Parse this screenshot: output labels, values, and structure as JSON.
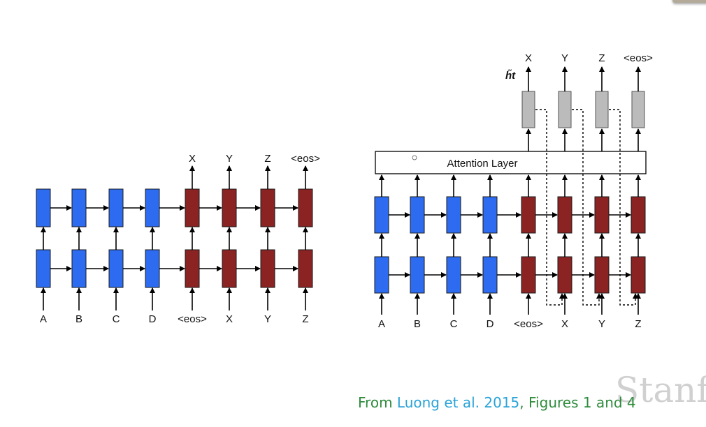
{
  "left_diagram": {
    "inputs": [
      "A",
      "B",
      "C",
      "D",
      "<eos>",
      "X",
      "Y",
      "Z"
    ],
    "outputs": [
      "X",
      "Y",
      "Z",
      "<eos>"
    ]
  },
  "right_diagram": {
    "inputs": [
      "A",
      "B",
      "C",
      "D",
      "<eos>",
      "X",
      "Y",
      "Z"
    ],
    "outputs": [
      "X",
      "Y",
      "Z",
      "<eos>"
    ],
    "attention_label": "Attention Layer",
    "ht_label": "h̃t"
  },
  "caption": {
    "prefix": "From ",
    "link": "Luong et al. 2015",
    "suffix": ", Figures 1 and 4"
  },
  "watermark": "Stanfo",
  "colors": {
    "encoder": "#2d6cf0",
    "decoder": "#8b2323",
    "attention_output": "#bbbbbb",
    "caption_text": "#2e8b3c",
    "caption_link": "#2aa3d8"
  }
}
